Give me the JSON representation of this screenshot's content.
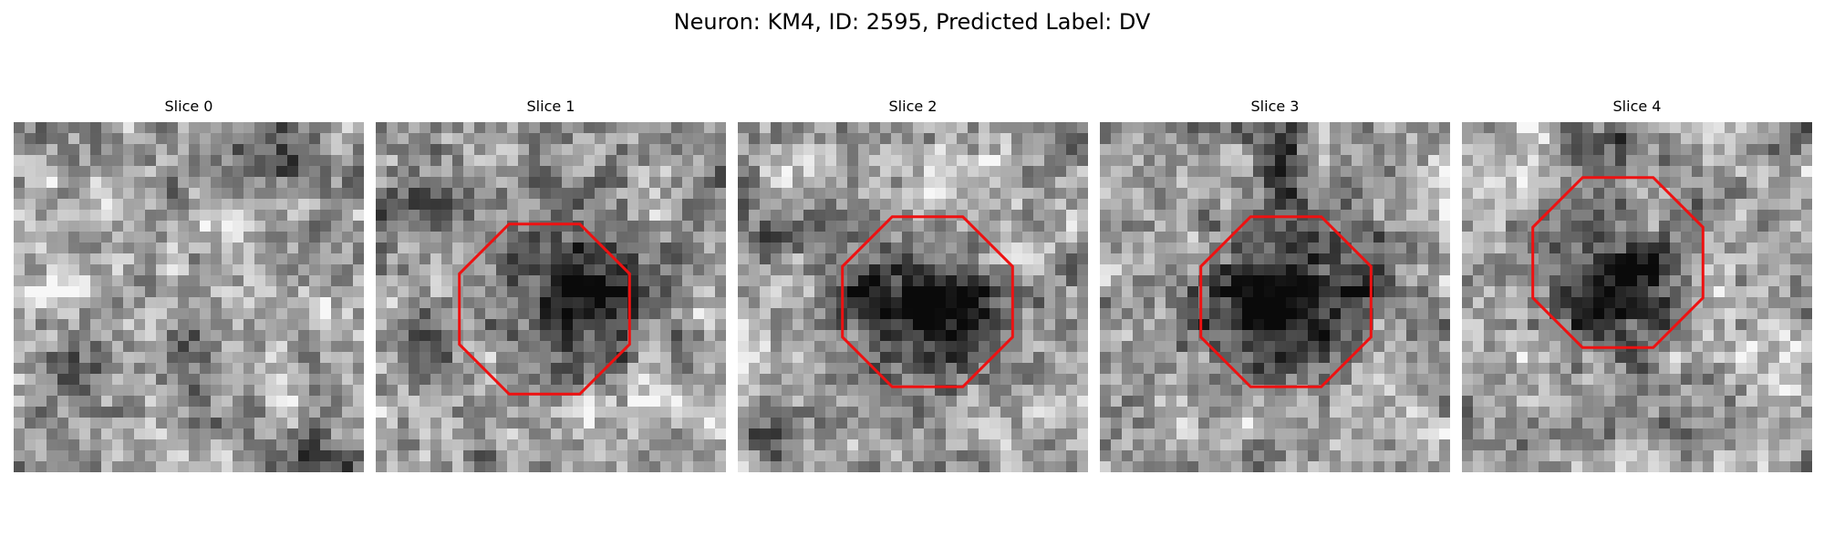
{
  "figure": {
    "title": "Neuron: KM4, ID: 2595, Predicted Label: DV"
  },
  "panels": [
    {
      "title": "Slice 0"
    },
    {
      "title": "Slice 1"
    },
    {
      "title": "Slice 2"
    },
    {
      "title": "Slice 3"
    },
    {
      "title": "Slice 4"
    }
  ],
  "colors": {
    "outline": "#ee1111",
    "background": "#ffffff"
  }
}
